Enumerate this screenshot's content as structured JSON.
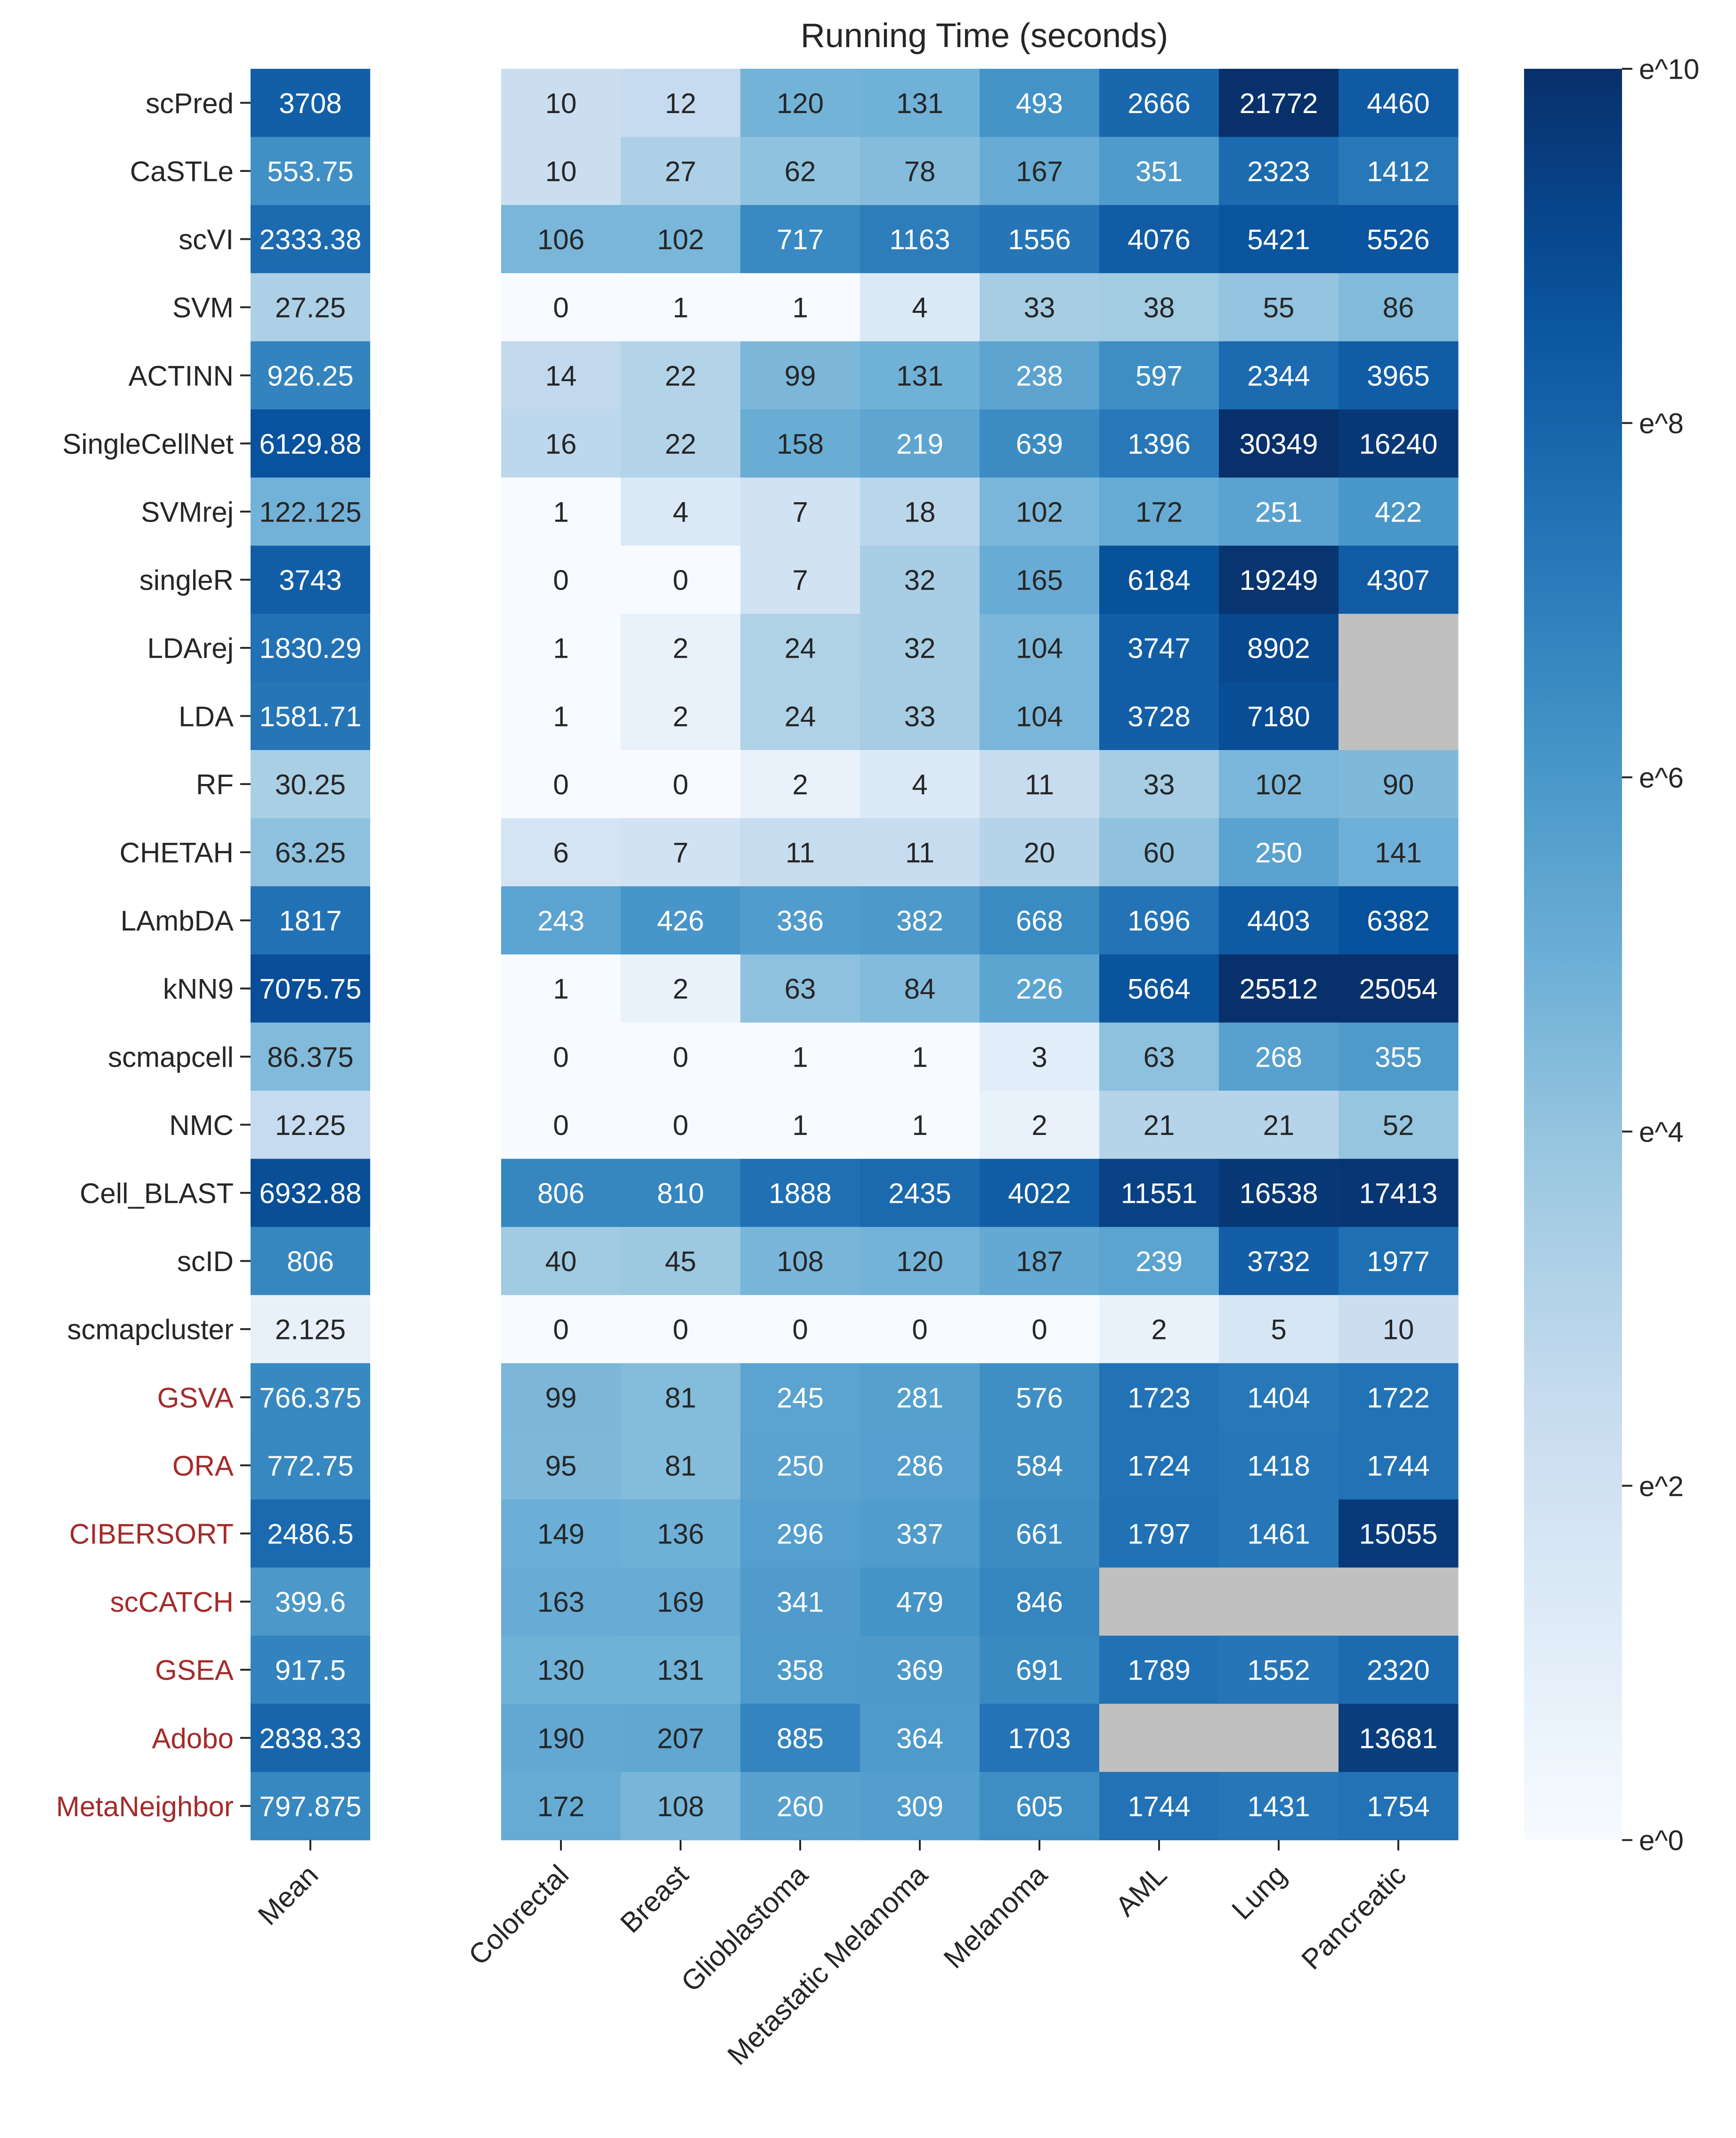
{
  "chart_data": {
    "type": "heatmap",
    "title": "Running Time (seconds)",
    "xlabel": "",
    "ylabel": "",
    "mean_label": "Mean",
    "columns": [
      "Colorectal",
      "Breast",
      "Glioblastoma",
      "Metastatic Melanoma",
      "Melanoma",
      "AML",
      "Lung",
      "Pancreatic"
    ],
    "rows": [
      {
        "name": "scPred",
        "mean": "3708",
        "values": [
          10,
          12,
          120,
          131,
          493,
          2666,
          21772,
          4460
        ]
      },
      {
        "name": "CaSTLe",
        "mean": "553.75",
        "values": [
          10,
          27,
          62,
          78,
          167,
          351,
          2323,
          1412
        ]
      },
      {
        "name": "scVI",
        "mean": "2333.38",
        "values": [
          106,
          102,
          717,
          1163,
          1556,
          4076,
          5421,
          5526
        ]
      },
      {
        "name": "SVM",
        "mean": "27.25",
        "values": [
          0,
          1,
          1,
          4,
          33,
          38,
          55,
          86
        ]
      },
      {
        "name": "ACTINN",
        "mean": "926.25",
        "values": [
          14,
          22,
          99,
          131,
          238,
          597,
          2344,
          3965
        ]
      },
      {
        "name": "SingleCellNet",
        "mean": "6129.88",
        "values": [
          16,
          22,
          158,
          219,
          639,
          1396,
          30349,
          16240
        ]
      },
      {
        "name": "SVMrej",
        "mean": "122.125",
        "values": [
          1,
          4,
          7,
          18,
          102,
          172,
          251,
          422
        ]
      },
      {
        "name": "singleR",
        "mean": "3743",
        "values": [
          0,
          0,
          7,
          32,
          165,
          6184,
          19249,
          4307
        ]
      },
      {
        "name": "LDArej",
        "mean": "1830.29",
        "values": [
          1,
          2,
          24,
          32,
          104,
          3747,
          8902,
          null
        ]
      },
      {
        "name": "LDA",
        "mean": "1581.71",
        "values": [
          1,
          2,
          24,
          33,
          104,
          3728,
          7180,
          null
        ]
      },
      {
        "name": "RF",
        "mean": "30.25",
        "values": [
          0,
          0,
          2,
          4,
          11,
          33,
          102,
          90
        ]
      },
      {
        "name": "CHETAH",
        "mean": "63.25",
        "values": [
          6,
          7,
          11,
          11,
          20,
          60,
          250,
          141
        ]
      },
      {
        "name": "LAmbDA",
        "mean": "1817",
        "values": [
          243,
          426,
          336,
          382,
          668,
          1696,
          4403,
          6382
        ]
      },
      {
        "name": "kNN9",
        "mean": "7075.75",
        "values": [
          1,
          2,
          63,
          84,
          226,
          5664,
          25512,
          25054
        ]
      },
      {
        "name": "scmapcell",
        "mean": "86.375",
        "values": [
          0,
          0,
          1,
          1,
          3,
          63,
          268,
          355
        ]
      },
      {
        "name": "NMC",
        "mean": "12.25",
        "values": [
          0,
          0,
          1,
          1,
          2,
          21,
          21,
          52
        ]
      },
      {
        "name": "Cell_BLAST",
        "mean": "6932.88",
        "values": [
          806,
          810,
          1888,
          2435,
          4022,
          11551,
          16538,
          17413
        ]
      },
      {
        "name": "scID",
        "mean": "806",
        "values": [
          40,
          45,
          108,
          120,
          187,
          239,
          3732,
          1977
        ]
      },
      {
        "name": "scmapcluster",
        "mean": "2.125",
        "values": [
          0,
          0,
          0,
          0,
          0,
          2,
          5,
          10
        ]
      },
      {
        "name": "GSVA",
        "mean": "766.375",
        "values": [
          99,
          81,
          245,
          281,
          576,
          1723,
          1404,
          1722
        ],
        "highlight": true
      },
      {
        "name": "ORA",
        "mean": "772.75",
        "values": [
          95,
          81,
          250,
          286,
          584,
          1724,
          1418,
          1744
        ],
        "highlight": true
      },
      {
        "name": "CIBERSORT",
        "mean": "2486.5",
        "values": [
          149,
          136,
          296,
          337,
          661,
          1797,
          1461,
          15055
        ],
        "highlight": true
      },
      {
        "name": "scCATCH",
        "mean": "399.6",
        "values": [
          163,
          169,
          341,
          479,
          846,
          null,
          null,
          null
        ],
        "highlight": true
      },
      {
        "name": "GSEA",
        "mean": "917.5",
        "values": [
          130,
          131,
          358,
          369,
          691,
          1789,
          1552,
          2320
        ],
        "highlight": true
      },
      {
        "name": "Adobo",
        "mean": "2838.33",
        "values": [
          190,
          207,
          885,
          364,
          1703,
          null,
          null,
          13681
        ],
        "highlight": true
      },
      {
        "name": "MetaNeighbor",
        "mean": "797.875",
        "values": [
          172,
          108,
          260,
          309,
          605,
          1744,
          1431,
          1754
        ],
        "highlight": true
      }
    ],
    "colorbar": {
      "ticks": [
        "e^0",
        "e^2",
        "e^4",
        "e^6",
        "e^8",
        "e^10"
      ],
      "tick_values": [
        0,
        2,
        4,
        6,
        8,
        10
      ],
      "scale": "log (natural)",
      "range": [
        0,
        10
      ]
    },
    "colors": {
      "low": "#f7fbff",
      "high": "#08306b",
      "missing": "#c0c0c0",
      "highlight_label": "#a52a2a",
      "text": "#262626"
    },
    "grid": false
  }
}
